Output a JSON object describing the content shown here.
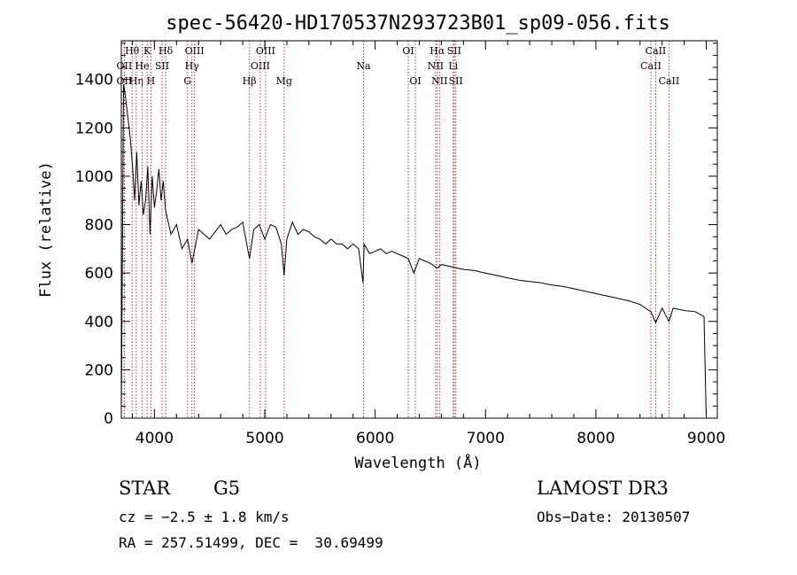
{
  "chart_data": {
    "type": "line",
    "title": "spec-56420-HD170537N293723B01_sp09-056.fits",
    "xlabel": "Wavelength (Å)",
    "ylabel": "Flux (relative)",
    "xlim": [
      3700,
      9100
    ],
    "ylim": [
      0,
      1560
    ],
    "xticks": [
      4000,
      5000,
      6000,
      7000,
      8000,
      9000
    ],
    "yticks": [
      0,
      200,
      400,
      600,
      800,
      1000,
      1200,
      1400
    ],
    "grid": false,
    "series": [
      {
        "x": [
          3700,
          3720,
          3740,
          3760,
          3780,
          3800,
          3820,
          3840,
          3860,
          3880,
          3900,
          3920,
          3940,
          3960,
          3980,
          4000,
          4020,
          4040,
          4060,
          4080,
          4100,
          4150,
          4200,
          4250,
          4300,
          4340,
          4400,
          4450,
          4500,
          4550,
          4600,
          4650,
          4700,
          4750,
          4800,
          4861,
          4900,
          4950,
          5000,
          5050,
          5100,
          5150,
          5175,
          5200,
          5250,
          5300,
          5350,
          5400,
          5450,
          5500,
          5550,
          5600,
          5650,
          5700,
          5750,
          5800,
          5850,
          5890,
          5900,
          5950,
          6000,
          6050,
          6100,
          6150,
          6200,
          6250,
          6300,
          6350,
          6400,
          6450,
          6500,
          6563,
          6600,
          6650,
          6700,
          6750,
          6800,
          6900,
          7000,
          7100,
          7200,
          7300,
          7400,
          7500,
          7600,
          7700,
          7800,
          7900,
          8000,
          8100,
          8200,
          8300,
          8400,
          8498,
          8542,
          8600,
          8662,
          8700,
          8800,
          8900,
          8980,
          9000
        ],
        "y": [
          20,
          1380,
          1320,
          1240,
          1160,
          1050,
          900,
          1100,
          880,
          980,
          840,
          900,
          1040,
          760,
          1000,
          870,
          940,
          1030,
          900,
          980,
          860,
          760,
          800,
          700,
          740,
          640,
          780,
          760,
          740,
          770,
          800,
          760,
          780,
          790,
          810,
          660,
          780,
          800,
          740,
          800,
          790,
          720,
          590,
          740,
          810,
          760,
          780,
          770,
          750,
          740,
          720,
          740,
          720,
          720,
          700,
          720,
          700,
          560,
          720,
          680,
          690,
          700,
          680,
          690,
          680,
          670,
          660,
          600,
          660,
          650,
          640,
          620,
          635,
          630,
          625,
          620,
          615,
          610,
          600,
          590,
          580,
          570,
          565,
          560,
          550,
          545,
          535,
          525,
          515,
          505,
          495,
          485,
          470,
          440,
          395,
          455,
          400,
          455,
          445,
          440,
          420,
          0
        ]
      }
    ],
    "line_markers": [
      {
        "label": "OII",
        "x": 3727,
        "row": 2
      },
      {
        "label": "Hθ",
        "x": 3798,
        "row": 1
      },
      {
        "label": "OII",
        "x": 3727,
        "row": 3
      },
      {
        "label": "Hη",
        "x": 3835,
        "row": 3
      },
      {
        "label": "He",
        "x": 3889,
        "row": 2
      },
      {
        "label": "K",
        "x": 3934,
        "row": 1
      },
      {
        "label": "H",
        "x": 3968,
        "row": 3
      },
      {
        "label": "SII",
        "x": 4069,
        "row": 2
      },
      {
        "label": "Hδ",
        "x": 4102,
        "row": 1
      },
      {
        "label": "G",
        "x": 4300,
        "row": 3
      },
      {
        "label": "Hγ",
        "x": 4340,
        "row": 2
      },
      {
        "label": "OIII",
        "x": 4363,
        "row": 1
      },
      {
        "label": "Hβ",
        "x": 4861,
        "row": 3
      },
      {
        "label": "OIII",
        "x": 4959,
        "row": 2
      },
      {
        "label": "OIII",
        "x": 5007,
        "row": 1
      },
      {
        "label": "Mg",
        "x": 5175,
        "row": 3
      },
      {
        "label": "Na",
        "x": 5894,
        "row": 2
      },
      {
        "label": "OI",
        "x": 6300,
        "row": 1
      },
      {
        "label": "OI",
        "x": 6364,
        "row": 3
      },
      {
        "label": "NII",
        "x": 6548,
        "row": 2
      },
      {
        "label": "Hα",
        "x": 6563,
        "row": 1
      },
      {
        "label": "NII",
        "x": 6583,
        "row": 3
      },
      {
        "label": "Li",
        "x": 6708,
        "row": 2
      },
      {
        "label": "SII",
        "x": 6716,
        "row": 1
      },
      {
        "label": "SII",
        "x": 6731,
        "row": 3
      },
      {
        "label": "CaII",
        "x": 8498,
        "row": 2
      },
      {
        "label": "CaII",
        "x": 8542,
        "row": 1
      },
      {
        "label": "CaII",
        "x": 8662,
        "row": 3
      }
    ]
  },
  "info": {
    "object_class": "STAR",
    "subclass": "G5",
    "survey": "LAMOST DR3",
    "cz": "cz = −2.5 ± 1.8 km/s",
    "obs_date": "Obs−Date: 20130507",
    "coords": "RA = 257.51499, DEC =  30.69499"
  },
  "colors": {
    "line": "#000000",
    "marker": "#b22222",
    "background": "#ffffff"
  }
}
